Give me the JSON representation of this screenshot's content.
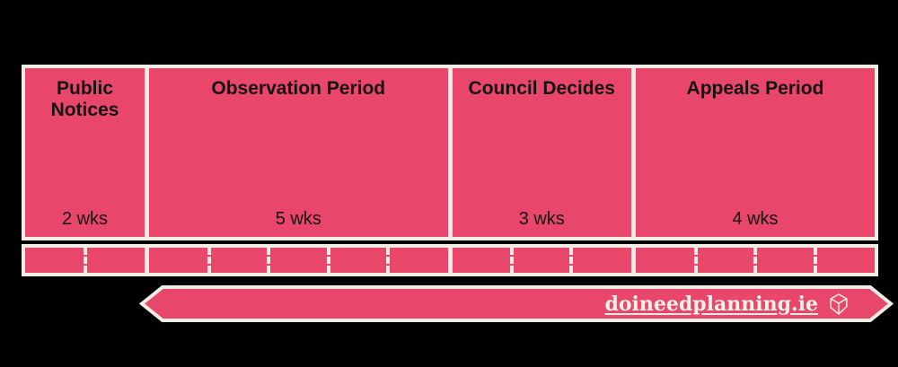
{
  "colors": {
    "background": "#000000",
    "phase_fill": "#e8476b",
    "outline_cream": "#f1ede4",
    "title_text": "#141414",
    "banner_text": "#f4f1e9"
  },
  "timeline": {
    "phases": [
      {
        "title": "Public Notices",
        "weeks": 2,
        "duration": "2 wks"
      },
      {
        "title": "Observation Period",
        "weeks": 5,
        "duration": "5 wks"
      },
      {
        "title": "Council Decides",
        "weeks": 3,
        "duration": "3 wks"
      },
      {
        "title": "Appeals Period",
        "weeks": 4,
        "duration": "4 wks"
      }
    ],
    "total_weeks": 14
  },
  "banner": {
    "site": "doineedplanning.ie",
    "icon": "cube-logo-icon"
  }
}
